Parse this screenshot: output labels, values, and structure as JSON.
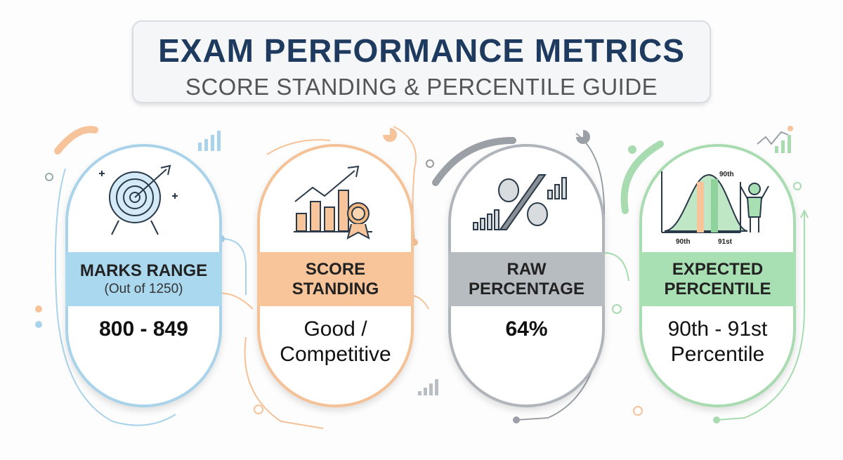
{
  "header": {
    "title": "EXAM PERFORMANCE METRICS",
    "subtitle": "SCORE STANDING & PERCENTILE GUIDE"
  },
  "cards": [
    {
      "label": "MARKS RANGE",
      "sublabel": "(Out of 1250)",
      "value": "800 - 849",
      "icon": "target-icon",
      "color": "#aad8ee"
    },
    {
      "label": "SCORE STANDING",
      "value": "Good / Competitive",
      "icon": "growth-chart-medal-icon",
      "color": "#f8c49a"
    },
    {
      "label": "RAW PERCENTAGE",
      "value": "64%",
      "icon": "percent-icon",
      "color": "#b7bcc1"
    },
    {
      "label": "EXPECTED PERCENTILE",
      "value": "90th - 91st Percentile",
      "icon": "bell-curve-person-icon",
      "color": "#a8e0b4",
      "icon_labels": {
        "top": "90th",
        "left": "90th",
        "right": "91st"
      }
    }
  ]
}
